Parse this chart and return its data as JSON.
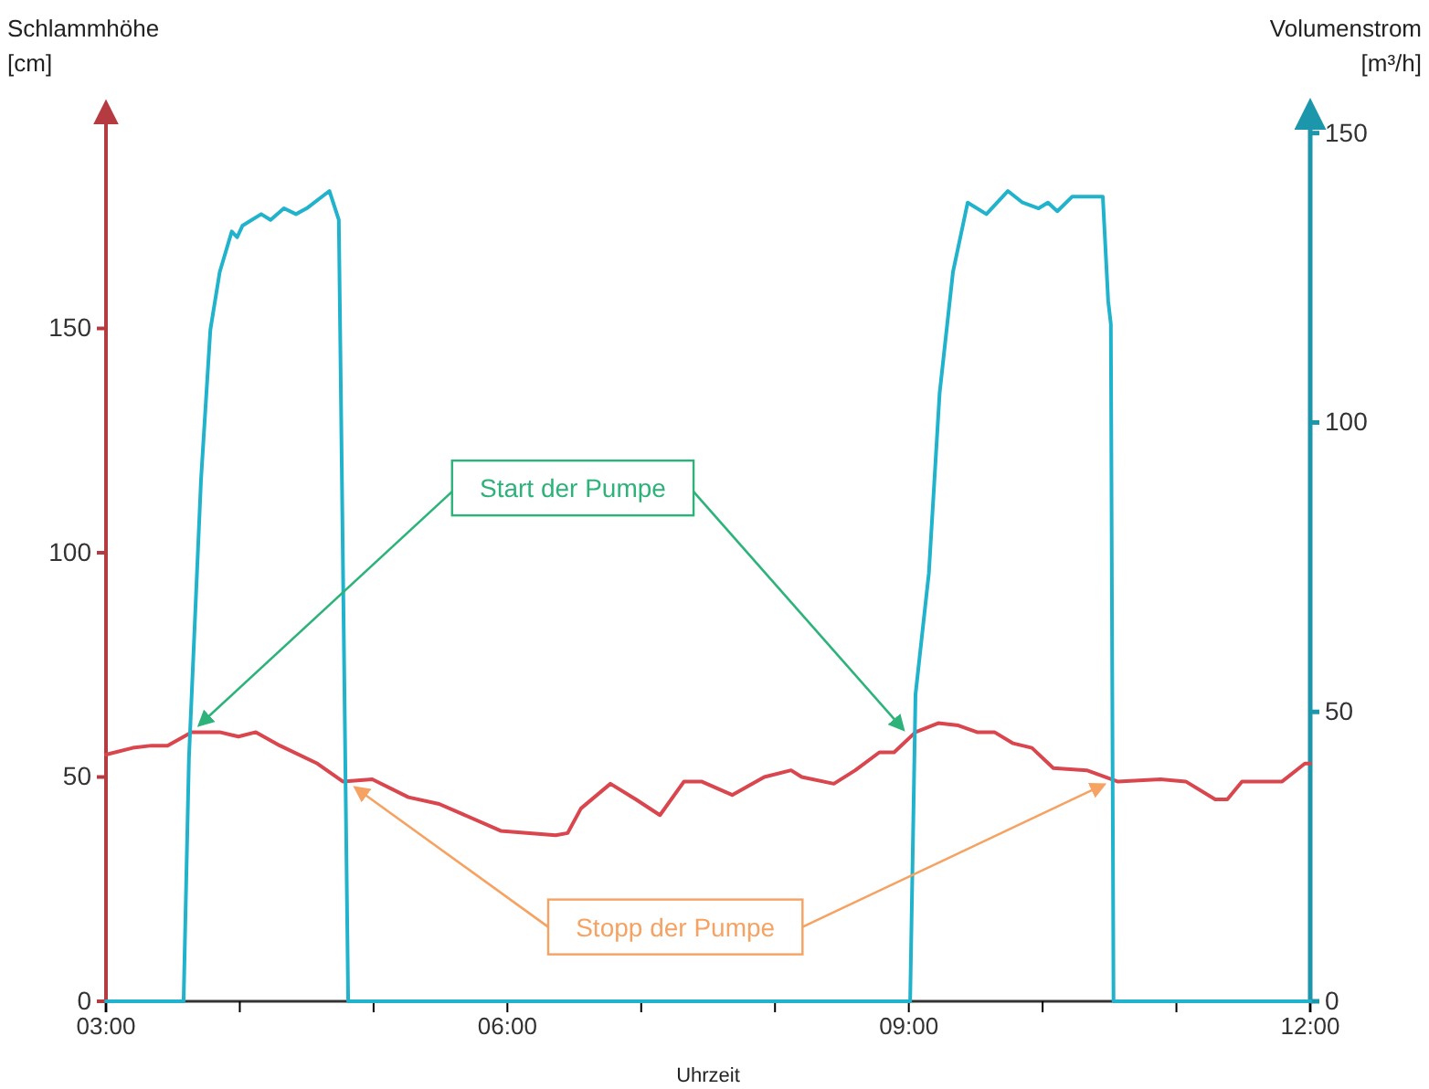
{
  "chart_data": {
    "type": "line",
    "xlabel": "Uhrzeit",
    "ylabel": "Schlammhöhe [cm]",
    "y2label": "Volumenstrom [m³/h]",
    "xlim": [
      3,
      12
    ],
    "xticks": [
      {
        "value": 3,
        "label": "03:00"
      },
      {
        "value": 4,
        "label": null
      },
      {
        "value": 5,
        "label": null
      },
      {
        "value": 6,
        "label": "06:00"
      },
      {
        "value": 7,
        "label": null
      },
      {
        "value": 8,
        "label": null
      },
      {
        "value": 9,
        "label": "09:00"
      },
      {
        "value": 10,
        "label": null
      },
      {
        "value": 11,
        "label": null
      },
      {
        "value": 12,
        "label": "12:00"
      }
    ],
    "ylim": [
      0,
      200
    ],
    "yticks": [
      0,
      50,
      100,
      150
    ],
    "y2lim": [
      0,
      155
    ],
    "y2ticks": [
      0,
      50,
      100,
      150
    ],
    "grid": false,
    "line_style": "solid",
    "series": [
      {
        "color": "#d9464e",
        "x": [
          3.0,
          3.2,
          3.34,
          3.46,
          3.64,
          3.85,
          3.99,
          4.12,
          4.3,
          4.58,
          4.77,
          4.99,
          5.26,
          5.49,
          5.95,
          6.36,
          6.45,
          6.55,
          6.77,
          6.96,
          7.14,
          7.32,
          7.45,
          7.68,
          7.92,
          8.12,
          8.2,
          8.44,
          8.6,
          8.78,
          8.89,
          9.05,
          9.22,
          9.37,
          9.51,
          9.64,
          9.78,
          9.92,
          10.08,
          10.33,
          10.56,
          10.88,
          11.07,
          11.29,
          11.38,
          11.49,
          11.79,
          11.96,
          12.0
        ],
        "values": [
          55,
          56.5,
          57,
          57,
          60,
          60,
          59,
          60,
          57,
          53,
          49,
          49.5,
          45.5,
          44,
          38,
          37,
          37.5,
          43,
          48.5,
          45,
          41.5,
          49,
          49,
          46,
          50,
          51.5,
          50,
          48.5,
          51.5,
          55.5,
          55.5,
          60,
          62,
          61.5,
          60,
          60,
          57.5,
          56.5,
          52,
          51.5,
          49,
          49.5,
          49,
          45,
          45,
          49,
          49,
          53,
          53
        ]
      },
      {
        "axis": "y2",
        "color": "#21b3cc",
        "x": [
          3.0,
          3.55,
          3.58,
          3.62,
          3.71,
          3.78,
          3.85,
          3.94,
          3.98,
          4.02,
          4.16,
          4.23,
          4.33,
          4.42,
          4.5,
          4.67,
          4.74,
          4.75,
          4.81,
          9.01,
          9.05,
          9.15,
          9.23,
          9.33,
          9.44,
          9.58,
          9.74,
          9.85,
          9.97,
          10.04,
          10.11,
          10.22,
          10.45,
          10.49,
          10.51,
          10.53,
          12.0
        ],
        "values": [
          0,
          0,
          0,
          42,
          90,
          116,
          126,
          133,
          132,
          134,
          136,
          135,
          137,
          136,
          137,
          140,
          135,
          116,
          0,
          0,
          53,
          74,
          105,
          126,
          138,
          136,
          140,
          138,
          137,
          138,
          136.5,
          139,
          139,
          121,
          117,
          0,
          0
        ]
      }
    ],
    "annotations": [
      {
        "text": "Start der Pumpe",
        "x": 3.64,
        "y": 60
      },
      {
        "text": "Stopp der Pumpe",
        "x": 4.8,
        "y": 49
      }
    ]
  }
}
